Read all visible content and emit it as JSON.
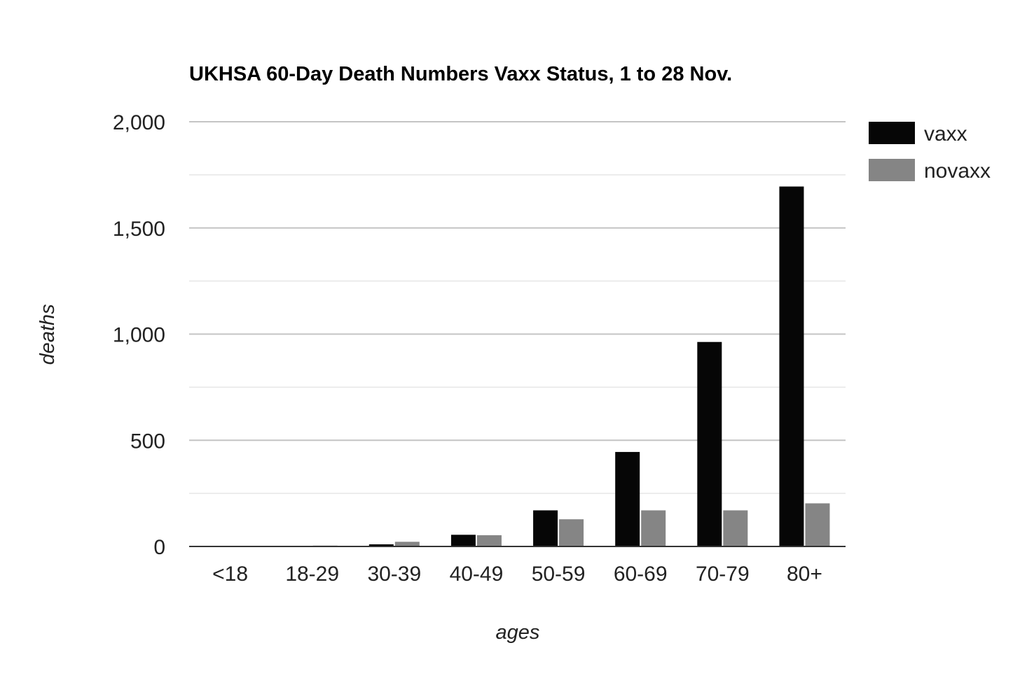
{
  "chart_data": {
    "type": "bar",
    "title": "UKHSA 60-Day Death Numbers Vaxx Status, 1 to 28 Nov.",
    "xlabel": "ages",
    "ylabel": "deaths",
    "categories": [
      "<18",
      "18-29",
      "30-39",
      "40-49",
      "50-59",
      "60-69",
      "70-79",
      "80+"
    ],
    "series": [
      {
        "name": "vaxx",
        "color": "#060606",
        "values": [
          2,
          3,
          10,
          55,
          170,
          445,
          963,
          1695
        ]
      },
      {
        "name": "novaxx",
        "color": "#858585",
        "values": [
          2,
          4,
          22,
          53,
          128,
          170,
          170,
          203
        ]
      }
    ],
    "ylim": [
      0,
      2000
    ],
    "yticks": [
      0,
      500,
      1000,
      1500,
      2000
    ],
    "ytick_labels": [
      "0",
      "500",
      "1,000",
      "1,500",
      "2,000"
    ],
    "grid": true,
    "legend": "top-right"
  }
}
